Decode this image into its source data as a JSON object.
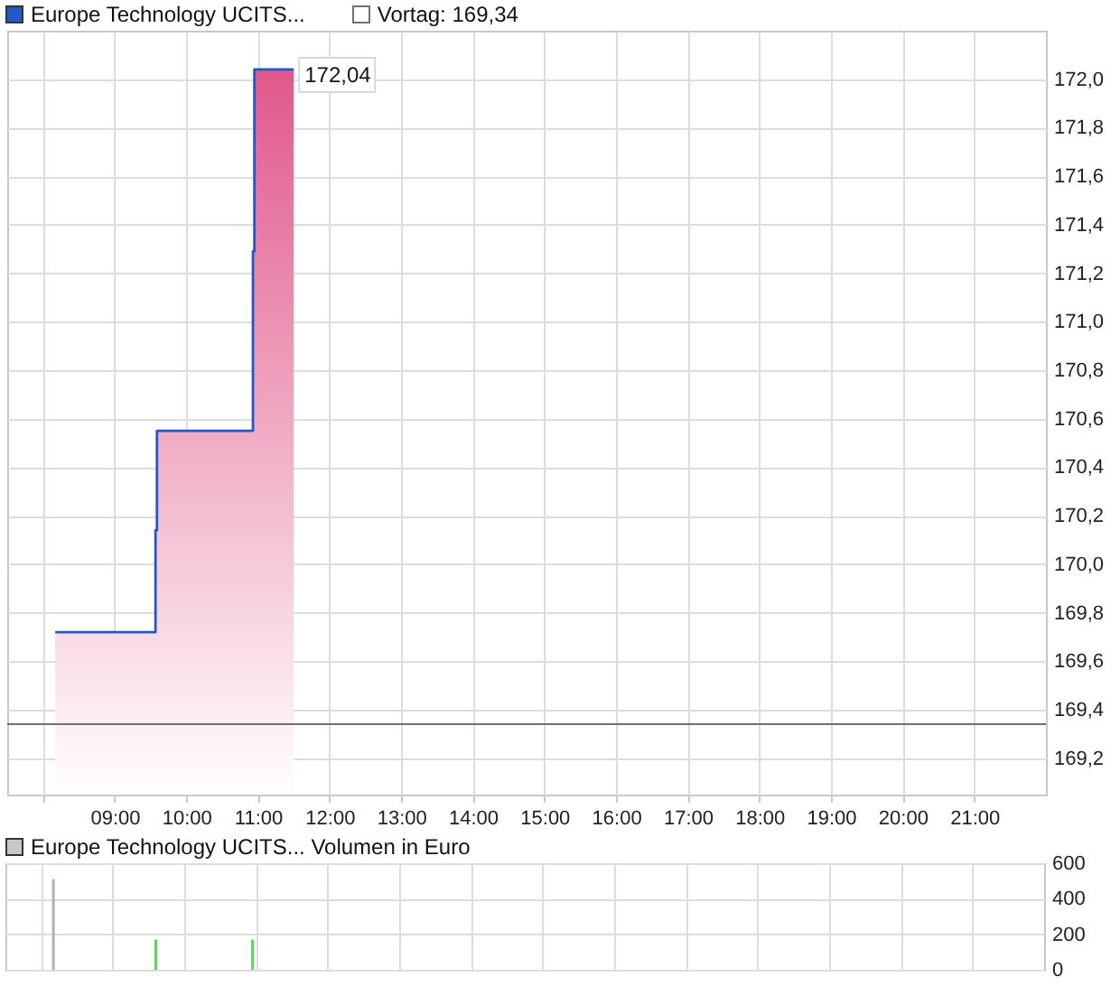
{
  "chart_data": [
    {
      "type": "step",
      "series": [
        {
          "type": "area",
          "color": "#e0588a",
          "x": [
            8.17,
            9.57,
            9.59,
            10.93,
            10.95,
            11.5
          ],
          "values": [
            169.72,
            170.14,
            170.55,
            171.29,
            172.04,
            172.04
          ]
        },
        {
          "type": "step",
          "name": "Europe Technology UCITS...",
          "color": "#2458c6",
          "x": [
            8.17,
            9.57,
            9.59,
            10.93,
            10.95,
            11.5
          ],
          "values": [
            169.72,
            170.14,
            170.55,
            171.29,
            172.04,
            172.04
          ]
        }
      ],
      "xlim": [
        7.5,
        22
      ],
      "xticks": [
        {
          "value": 8,
          "label": null
        },
        {
          "value": 9,
          "label": "09:00"
        },
        {
          "value": 10,
          "label": "10:00"
        },
        {
          "value": 11,
          "label": "11:00"
        },
        {
          "value": 12,
          "label": "12:00"
        },
        {
          "value": 13,
          "label": "13:00"
        },
        {
          "value": 14,
          "label": "14:00"
        },
        {
          "value": 15,
          "label": "15:00"
        },
        {
          "value": 16,
          "label": "16:00"
        },
        {
          "value": 17,
          "label": "17:00"
        },
        {
          "value": 18,
          "label": "18:00"
        },
        {
          "value": 19,
          "label": "19:00"
        },
        {
          "value": 20,
          "label": "20:00"
        },
        {
          "value": 21,
          "label": "21:00"
        }
      ],
      "ylim": [
        169.05,
        172.2
      ],
      "yticks": [
        {
          "value": 169.2,
          "label": "169,2"
        },
        {
          "value": 169.4,
          "label": "169,4"
        },
        {
          "value": 169.6,
          "label": "169,6"
        },
        {
          "value": 169.8,
          "label": "169,8"
        },
        {
          "value": 170.0,
          "label": "170,0"
        },
        {
          "value": 170.2,
          "label": "170,2"
        },
        {
          "value": 170.4,
          "label": "170,4"
        },
        {
          "value": 170.6,
          "label": "170,6"
        },
        {
          "value": 170.8,
          "label": "170,8"
        },
        {
          "value": 171.0,
          "label": "171,0"
        },
        {
          "value": 171.2,
          "label": "171,2"
        },
        {
          "value": 171.4,
          "label": "171,4"
        },
        {
          "value": 171.6,
          "label": "171,6"
        },
        {
          "value": 171.8,
          "label": "171,8"
        },
        {
          "value": 172.0,
          "label": "172,0"
        }
      ],
      "ref_lines": [
        {
          "axis": "y",
          "value": 169.34,
          "label": "Vortag: 169,34",
          "color": "#707070"
        }
      ],
      "annotations": [
        {
          "text": "172,04",
          "x": 11.5,
          "y": 172.04
        }
      ],
      "grid": true,
      "legend": "top left"
    },
    {
      "type": "bar",
      "series": [
        {
          "name": "Europe Technology UCITS... Volumen in Euro",
          "color": "#c8c8c8",
          "x": [
            8.17,
            9.6,
            10.95
          ],
          "values": [
            510,
            170,
            170
          ],
          "colors": [
            "#b0b0b0",
            "#55d855",
            "#55d855"
          ]
        }
      ],
      "xlim": [
        7.5,
        22
      ],
      "xticks": [
        {
          "value": 8,
          "label": null
        },
        {
          "value": 9,
          "label": null
        },
        {
          "value": 10,
          "label": null
        },
        {
          "value": 11,
          "label": null
        },
        {
          "value": 12,
          "label": null
        },
        {
          "value": 13,
          "label": null
        },
        {
          "value": 14,
          "label": null
        },
        {
          "value": 15,
          "label": null
        },
        {
          "value": 16,
          "label": null
        },
        {
          "value": 17,
          "label": null
        },
        {
          "value": 18,
          "label": null
        },
        {
          "value": 19,
          "label": null
        },
        {
          "value": 20,
          "label": null
        },
        {
          "value": 21,
          "label": null
        }
      ],
      "ylim": [
        0,
        600
      ],
      "yticks": [
        0,
        200,
        400,
        600
      ],
      "tick_labels": "y",
      "grid": true,
      "legend": "top left"
    }
  ]
}
